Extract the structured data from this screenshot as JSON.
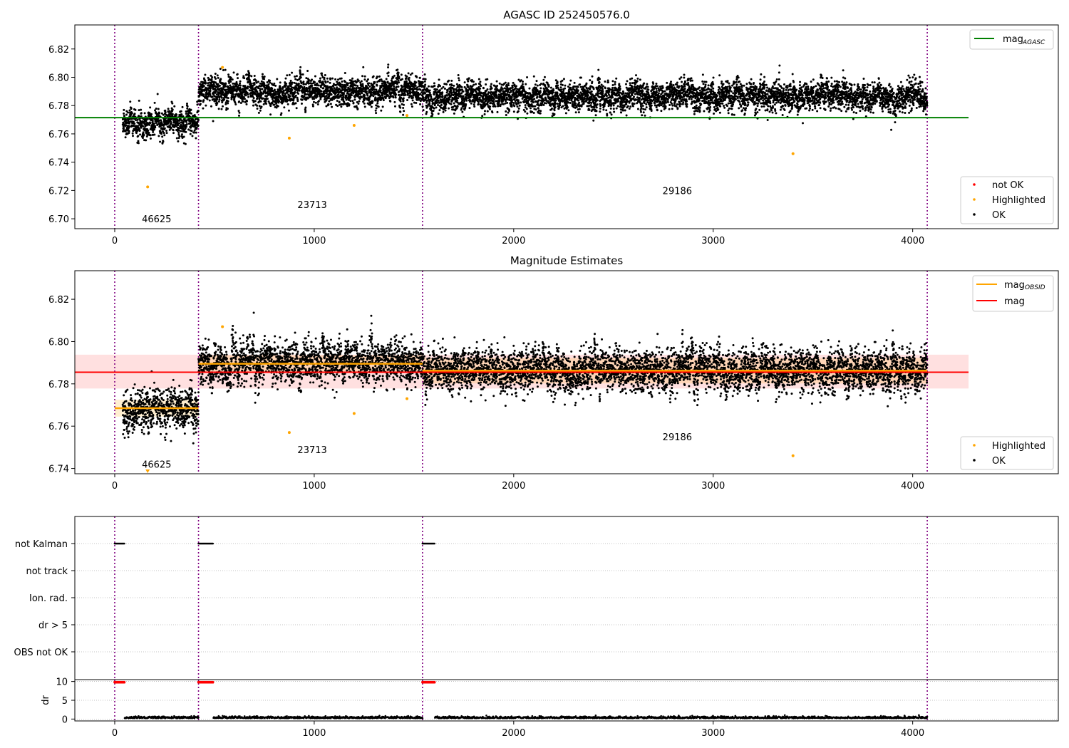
{
  "chart_data": [
    {
      "type": "scatter",
      "title": "AGASC ID 252450576.0",
      "xlim": [
        -200,
        4730
      ],
      "ylim": [
        6.693,
        6.837
      ],
      "yticks": [
        6.7,
        6.72,
        6.74,
        6.76,
        6.78,
        6.8,
        6.82
      ],
      "xticks": [
        0,
        1000,
        2000,
        3000,
        4000
      ],
      "obsid_boundaries": [
        0,
        420,
        1543,
        4073
      ],
      "obsid_labels": [
        {
          "text": "46625",
          "x": 210,
          "y": 6.7
        },
        {
          "text": "23713",
          "x": 990,
          "y": 6.71
        },
        {
          "text": "29186",
          "x": 2820,
          "y": 6.72
        }
      ],
      "lines": [
        {
          "name": "mag_AGASC",
          "x": [
            -200,
            4280
          ],
          "y": [
            6.7715,
            6.7715
          ],
          "color": "#008000"
        }
      ],
      "segments": [
        {
          "x": [
            40,
            420
          ],
          "center": 6.768,
          "spread": 0.0045
        },
        {
          "x": [
            420,
            1543
          ],
          "center": 6.79,
          "spread": 0.0045
        },
        {
          "x": [
            1543,
            4073
          ],
          "center": 6.7865,
          "spread": 0.0045
        }
      ],
      "highlighted": [
        {
          "x": 165,
          "y": 6.7225
        },
        {
          "x": 540,
          "y": 6.807
        },
        {
          "x": 875,
          "y": 6.757
        },
        {
          "x": 1200,
          "y": 6.766
        },
        {
          "x": 1465,
          "y": 6.773
        },
        {
          "x": 3400,
          "y": 6.746
        }
      ],
      "legends": [
        {
          "position": "top-right",
          "entries": [
            {
              "label": "mag",
              "sub": "AGASC",
              "color": "#008000",
              "kind": "line"
            }
          ]
        },
        {
          "position": "lower-right",
          "entries": [
            {
              "label": "not OK",
              "color": "#ff0000",
              "kind": "dot"
            },
            {
              "label": "Highlighted",
              "color": "#ffa500",
              "kind": "dot"
            },
            {
              "label": "OK",
              "color": "#000000",
              "kind": "dot"
            }
          ]
        }
      ]
    },
    {
      "type": "scatter",
      "title": "Magnitude Estimates",
      "xlim": [
        -200,
        4730
      ],
      "ylim": [
        6.7375,
        6.8335
      ],
      "yticks": [
        6.74,
        6.76,
        6.78,
        6.8,
        6.82
      ],
      "xticks": [
        0,
        1000,
        2000,
        3000,
        4000
      ],
      "obsid_boundaries": [
        0,
        420,
        1543,
        4073
      ],
      "obsid_labels": [
        {
          "text": "46625",
          "x": 210,
          "y": 6.742
        },
        {
          "text": "23713",
          "x": 990,
          "y": 6.749
        },
        {
          "text": "29186",
          "x": 2820,
          "y": 6.755
        }
      ],
      "mag": {
        "value": 6.7855,
        "band": [
          6.7778,
          6.7938
        ],
        "x": [
          -200,
          4280
        ],
        "color": "#ff0000"
      },
      "mag_obsid": [
        {
          "x": [
            0,
            420
          ],
          "value": 6.7685,
          "band": [
            6.7645,
            6.7725
          ]
        },
        {
          "x": [
            420,
            1543
          ],
          "value": 6.7895,
          "band": [
            6.7855,
            6.7935
          ]
        },
        {
          "x": [
            1543,
            4073
          ],
          "value": 6.7862,
          "band": [
            6.7802,
            6.7922
          ]
        }
      ],
      "segments": [
        {
          "x": [
            40,
            420
          ],
          "center": 6.768,
          "spread": 0.0045
        },
        {
          "x": [
            420,
            1543
          ],
          "center": 6.79,
          "spread": 0.0045
        },
        {
          "x": [
            1543,
            4073
          ],
          "center": 6.7865,
          "spread": 0.0045
        }
      ],
      "highlighted": [
        {
          "x": 540,
          "y": 6.807
        },
        {
          "x": 875,
          "y": 6.757
        },
        {
          "x": 1200,
          "y": 6.766
        },
        {
          "x": 1465,
          "y": 6.773
        },
        {
          "x": 3400,
          "y": 6.746
        }
      ],
      "clipped_marker": {
        "x": 165
      },
      "legends": [
        {
          "position": "top-right",
          "entries": [
            {
              "label": "mag",
              "sub": "OBSID",
              "color": "#ffa500",
              "kind": "line"
            },
            {
              "label": "mag",
              "sub": "",
              "color": "#ff0000",
              "kind": "line"
            }
          ]
        },
        {
          "position": "lower-right",
          "entries": [
            {
              "label": "Highlighted",
              "color": "#ffa500",
              "kind": "dot"
            },
            {
              "label": "OK",
              "color": "#000000",
              "kind": "dot"
            }
          ]
        }
      ]
    },
    {
      "type": "scatter",
      "title": "",
      "categories": [
        "not Kalman",
        "not track",
        "Ion. rad.",
        "dr > 5",
        "OBS not OK"
      ],
      "xlim": [
        -200,
        4730
      ],
      "obsid_boundaries": [
        0,
        420,
        1543,
        4073
      ],
      "flags": [
        {
          "category": "not Kalman",
          "x_ranges": [
            [
              0,
              50
            ],
            [
              420,
              495
            ],
            [
              1543,
              1605
            ]
          ]
        }
      ]
    },
    {
      "type": "scatter",
      "title": "",
      "ylabel": "dr",
      "ylim": [
        -0.5,
        10.5
      ],
      "yticks": [
        0,
        5,
        10
      ],
      "xticks": [
        0,
        1000,
        2000,
        3000,
        4000
      ],
      "xlim": [
        -200,
        4730
      ],
      "obsid_boundaries": [
        0,
        420,
        1543,
        4073
      ],
      "saturated": [
        {
          "x_range": [
            0,
            50
          ],
          "y": 9.8
        },
        {
          "x_range": [
            420,
            495
          ],
          "y": 9.8
        },
        {
          "x_range": [
            1543,
            1605
          ],
          "y": 9.8
        }
      ],
      "dr_baseline": {
        "value": 0.2,
        "segments": [
          [
            50,
            420
          ],
          [
            495,
            1543
          ],
          [
            1605,
            4073
          ]
        ]
      }
    }
  ]
}
